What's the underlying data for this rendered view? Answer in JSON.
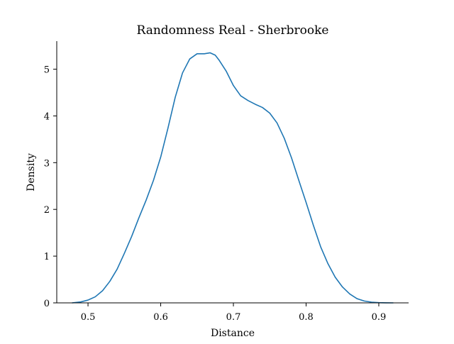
{
  "chart_data": {
    "type": "line",
    "title": "Randomness Real - Sherbrooke",
    "xlabel": "Distance",
    "ylabel": "Density",
    "xlim": [
      0.457,
      0.941
    ],
    "ylim": [
      0,
      5.6
    ],
    "xticks": [
      0.5,
      0.6,
      0.7,
      0.8,
      0.9
    ],
    "xtick_labels": [
      "0.5",
      "0.6",
      "0.7",
      "0.8",
      "0.9"
    ],
    "yticks": [
      0,
      1,
      2,
      3,
      4,
      5
    ],
    "ytick_labels": [
      "0",
      "1",
      "2",
      "3",
      "4",
      "5"
    ],
    "grid": false,
    "series": [
      {
        "color": "#1f77b4",
        "x": [
          0.478,
          0.49,
          0.5,
          0.51,
          0.52,
          0.53,
          0.54,
          0.55,
          0.56,
          0.57,
          0.58,
          0.59,
          0.6,
          0.61,
          0.62,
          0.63,
          0.64,
          0.65,
          0.66,
          0.668,
          0.675,
          0.68,
          0.69,
          0.7,
          0.71,
          0.72,
          0.73,
          0.74,
          0.75,
          0.76,
          0.77,
          0.78,
          0.79,
          0.8,
          0.81,
          0.82,
          0.83,
          0.84,
          0.85,
          0.86,
          0.87,
          0.88,
          0.89,
          0.9,
          0.91,
          0.92
        ],
        "y": [
          0.0,
          0.02,
          0.06,
          0.13,
          0.26,
          0.46,
          0.72,
          1.06,
          1.42,
          1.82,
          2.2,
          2.62,
          3.12,
          3.74,
          4.4,
          4.92,
          5.22,
          5.33,
          5.33,
          5.35,
          5.3,
          5.2,
          4.96,
          4.65,
          4.43,
          4.33,
          4.25,
          4.18,
          4.06,
          3.85,
          3.52,
          3.1,
          2.62,
          2.15,
          1.66,
          1.2,
          0.84,
          0.55,
          0.34,
          0.19,
          0.09,
          0.04,
          0.015,
          0.005,
          0.001,
          0.0
        ]
      }
    ]
  }
}
